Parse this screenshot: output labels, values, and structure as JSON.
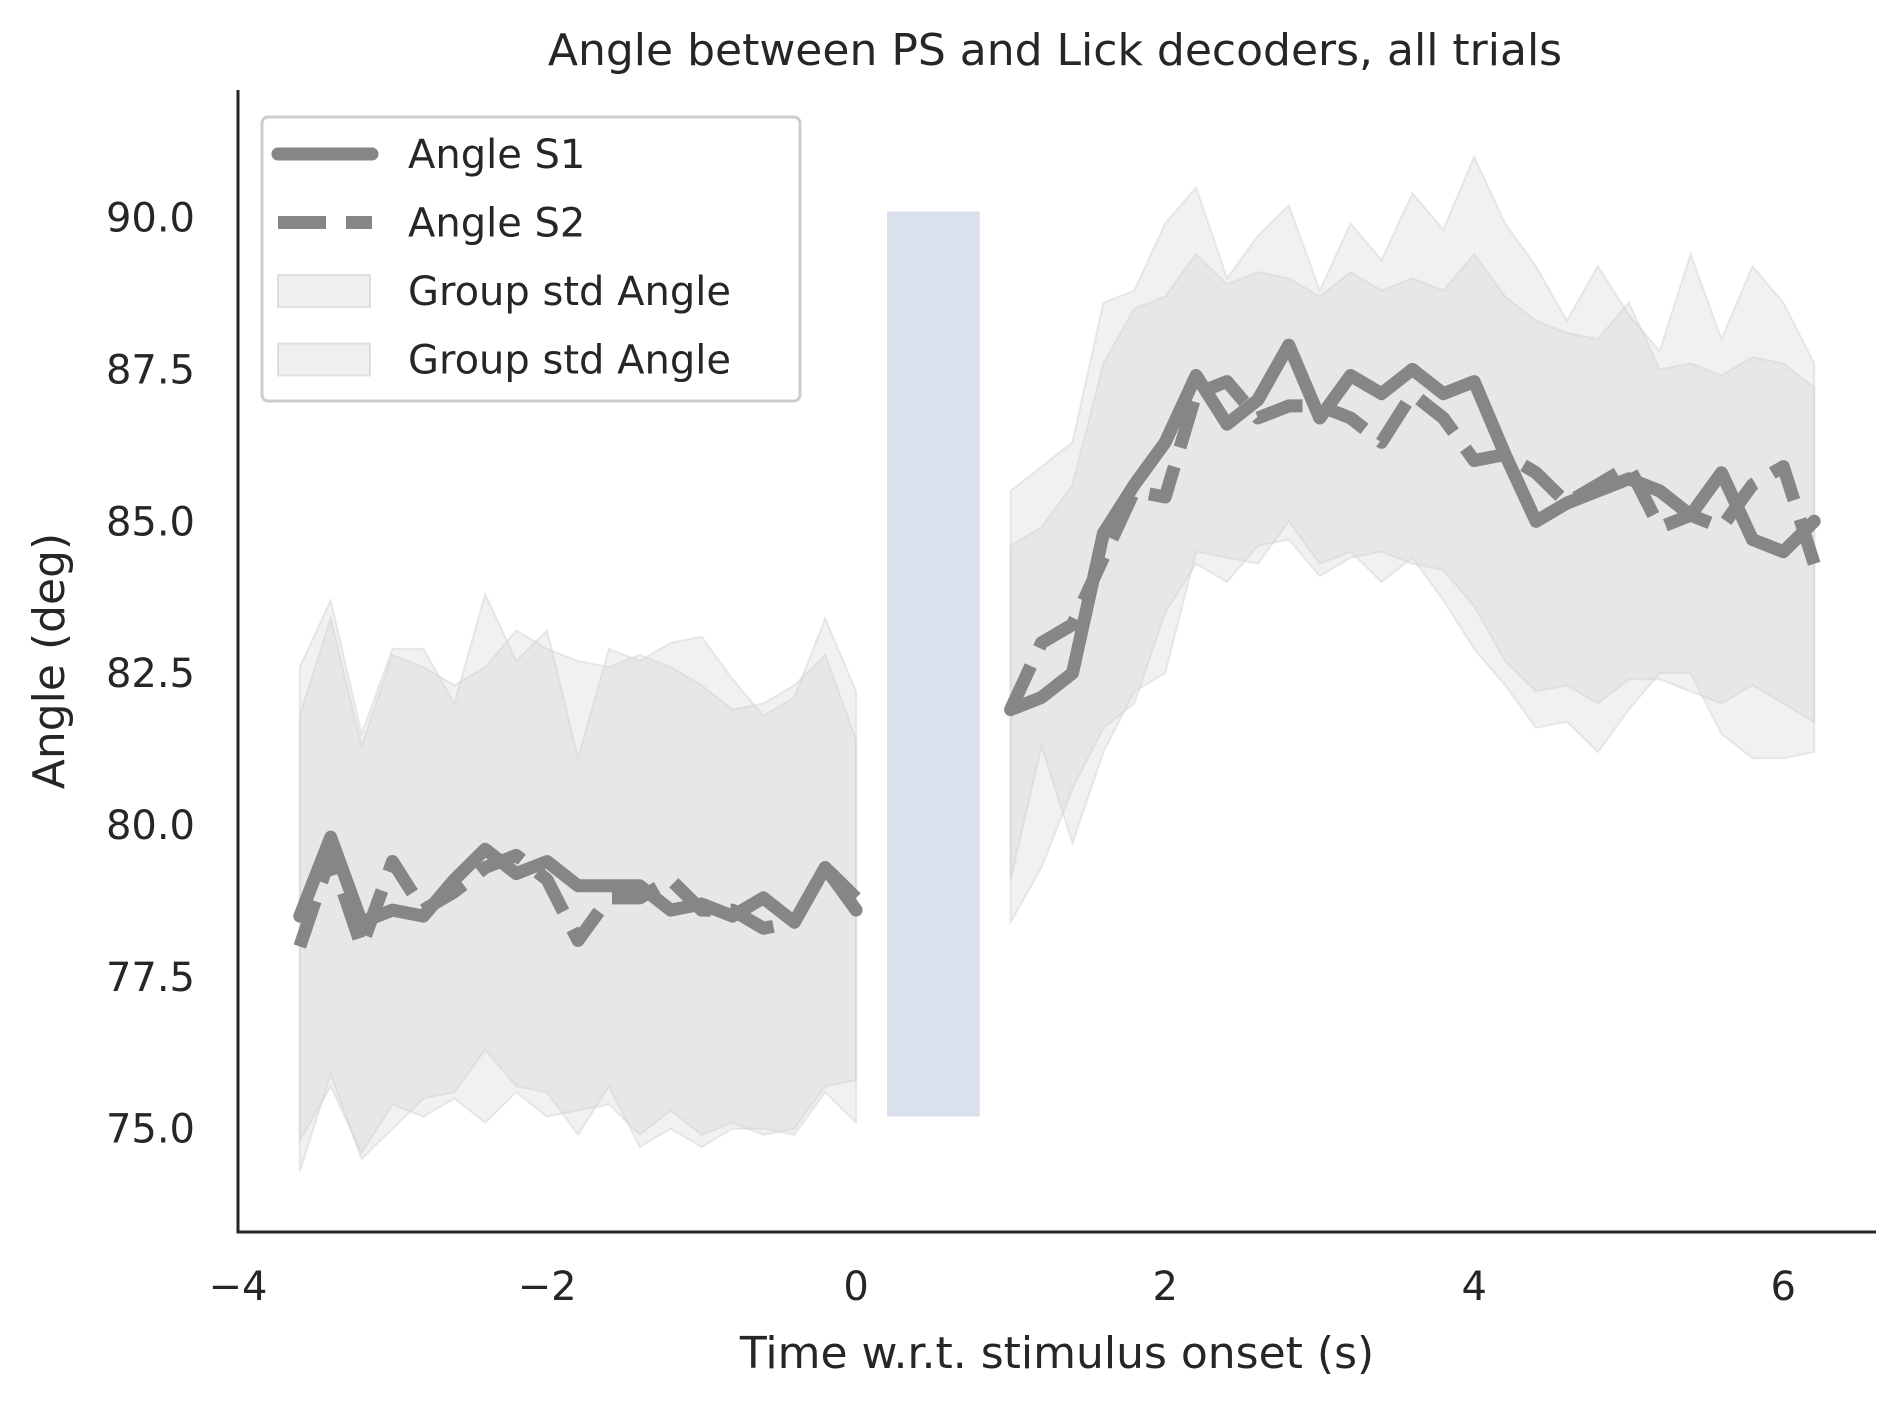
{
  "chart_data": {
    "type": "line",
    "title": "Angle between PS and Lick decoders, all trials",
    "xlabel": "Time w.r.t. stimulus onset (s)",
    "ylabel": "Angle (deg)",
    "xlim": [
      -4,
      6.6
    ],
    "ylim": [
      73.3,
      92.1
    ],
    "xticks": [
      -4,
      -2,
      0,
      2,
      4,
      6
    ],
    "xtick_labels": [
      "−4",
      "−2",
      "0",
      "2",
      "4",
      "6"
    ],
    "yticks": [
      75.0,
      77.5,
      80.0,
      82.5,
      85.0,
      87.5,
      90.0
    ],
    "ytick_labels": [
      "75.0",
      "77.5",
      "80.0",
      "82.5",
      "85.0",
      "87.5",
      "90.0"
    ],
    "grid": false,
    "legend_position": "top-left",
    "stim_window": {
      "x": [
        0.2,
        0.8
      ],
      "y": [
        75.2,
        90.1
      ],
      "color": "#dae0ec"
    },
    "series": [
      {
        "name": "Angle S1",
        "style": "solid",
        "color": "#868686",
        "segments": [
          {
            "x": [
              -3.6,
              -3.4,
              -3.2,
              -3.0,
              -2.8,
              -2.6,
              -2.4,
              -2.2,
              -2.0,
              -1.8,
              -1.6,
              -1.4,
              -1.2,
              -1.0,
              -0.8,
              -0.6,
              -0.4,
              -0.2,
              0.0
            ],
            "y": [
              78.5,
              79.8,
              78.4,
              78.6,
              78.5,
              79.1,
              79.6,
              79.2,
              79.4,
              79.0,
              79.0,
              79.0,
              78.6,
              78.7,
              78.5,
              78.8,
              78.4,
              79.3,
              78.6
            ]
          },
          {
            "x": [
              1.0,
              1.2,
              1.4,
              1.6,
              1.8,
              2.0,
              2.2,
              2.4,
              2.6,
              2.8,
              3.0,
              3.2,
              3.4,
              3.6,
              3.8,
              4.0,
              4.2,
              4.4,
              4.6,
              4.8,
              5.0,
              5.2,
              5.4,
              5.6,
              5.8,
              6.0,
              6.2
            ],
            "y": [
              81.9,
              82.1,
              82.5,
              84.8,
              85.6,
              86.3,
              87.4,
              86.6,
              87.0,
              87.9,
              86.7,
              87.4,
              87.1,
              87.5,
              87.1,
              87.3,
              86.1,
              85.0,
              85.3,
              85.5,
              85.7,
              85.5,
              85.1,
              85.8,
              84.7,
              84.5,
              85.0
            ]
          }
        ]
      },
      {
        "name": "Angle S2",
        "style": "dashed",
        "color": "#868686",
        "segments": [
          {
            "x": [
              -3.6,
              -3.4,
              -3.2,
              -3.0,
              -2.8,
              -2.6,
              -2.4,
              -2.2,
              -2.0,
              -1.8,
              -1.6,
              -1.4,
              -1.2,
              -1.0,
              -0.8,
              -0.6,
              -0.4,
              -0.2,
              0.0
            ],
            "y": [
              78.0,
              79.5,
              78.0,
              79.4,
              78.6,
              78.9,
              79.3,
              79.5,
              79.1,
              78.1,
              78.8,
              78.8,
              79.1,
              78.6,
              78.6,
              78.3,
              78.4,
              79.3,
              78.8
            ]
          },
          {
            "x": [
              1.0,
              1.2,
              1.4,
              1.6,
              1.8,
              2.0,
              2.2,
              2.4,
              2.6,
              2.8,
              3.0,
              3.2,
              3.4,
              3.6,
              3.8,
              4.0,
              4.2,
              4.4,
              4.6,
              4.8,
              5.0,
              5.2,
              5.4,
              5.6,
              5.8,
              6.0,
              6.2
            ],
            "y": [
              81.9,
              83.0,
              83.3,
              84.4,
              85.5,
              85.4,
              87.1,
              87.3,
              86.7,
              86.9,
              86.9,
              86.7,
              86.3,
              87.1,
              86.7,
              86.0,
              86.1,
              85.8,
              85.3,
              85.6,
              85.9,
              84.9,
              85.1,
              84.9,
              85.6,
              85.9,
              84.3
            ]
          }
        ]
      }
    ],
    "bands": [
      {
        "name": "Group std Angle",
        "color": "#d0d0d0",
        "segments": [
          {
            "x": [
              -3.6,
              -3.4,
              -3.2,
              -3.0,
              -2.8,
              -2.6,
              -2.4,
              -2.2,
              -2.0,
              -1.8,
              -1.6,
              -1.4,
              -1.2,
              -1.0,
              -0.8,
              -0.6,
              -0.4,
              -0.2,
              0.0
            ],
            "upper": [
              82.6,
              83.7,
              81.5,
              82.9,
              82.9,
              82.0,
              83.8,
              82.7,
              83.2,
              81.1,
              82.9,
              82.7,
              83.0,
              83.1,
              82.4,
              81.8,
              82.1,
              83.4,
              82.2
            ],
            "lower": [
              74.3,
              75.9,
              74.5,
              75.0,
              75.5,
              75.6,
              76.3,
              75.7,
              75.6,
              74.9,
              75.7,
              74.7,
              75.0,
              74.7,
              75.0,
              75.0,
              74.9,
              75.6,
              75.1
            ]
          },
          {
            "x": [
              1.0,
              1.2,
              1.4,
              1.6,
              1.8,
              2.0,
              2.2,
              2.4,
              2.6,
              2.8,
              3.0,
              3.2,
              3.4,
              3.6,
              3.8,
              4.0,
              4.2,
              4.4,
              4.6,
              4.8,
              5.0,
              5.2,
              5.4,
              5.6,
              5.8,
              6.0,
              6.2
            ],
            "upper": [
              85.5,
              85.9,
              86.3,
              88.6,
              88.8,
              89.9,
              90.5,
              89.0,
              89.7,
              90.2,
              88.8,
              89.9,
              89.3,
              90.4,
              89.8,
              91.0,
              89.9,
              89.2,
              88.3,
              89.2,
              88.4,
              87.8,
              89.4,
              88.0,
              89.2,
              88.6,
              87.6
            ],
            "lower": [
              79.1,
              81.3,
              79.7,
              81.2,
              82.2,
              82.5,
              84.5,
              84.4,
              84.3,
              85.0,
              84.3,
              84.5,
              84.0,
              84.4,
              83.7,
              82.9,
              82.3,
              81.6,
              81.7,
              81.2,
              81.9,
              82.5,
              82.5,
              81.5,
              81.1,
              81.1,
              81.2
            ]
          }
        ]
      },
      {
        "name": "Group std Angle",
        "color": "#d0d0d0",
        "segments": [
          {
            "x": [
              -3.6,
              -3.4,
              -3.2,
              -3.0,
              -2.8,
              -2.6,
              -2.4,
              -2.2,
              -2.0,
              -1.8,
              -1.6,
              -1.4,
              -1.2,
              -1.0,
              -0.8,
              -0.6,
              -0.4,
              -0.2,
              0.0
            ],
            "upper": [
              81.8,
              83.4,
              81.3,
              82.8,
              82.6,
              82.3,
              82.6,
              83.2,
              82.9,
              82.7,
              82.6,
              82.8,
              82.6,
              82.3,
              81.9,
              82.0,
              82.3,
              82.8,
              81.4
            ],
            "lower": [
              74.8,
              75.7,
              74.6,
              75.4,
              75.2,
              75.5,
              75.1,
              75.6,
              75.2,
              75.3,
              75.4,
              74.9,
              75.3,
              74.9,
              75.1,
              74.9,
              75.0,
              75.7,
              75.8
            ]
          },
          {
            "x": [
              1.0,
              1.2,
              1.4,
              1.6,
              1.8,
              2.0,
              2.2,
              2.4,
              2.6,
              2.8,
              3.0,
              3.2,
              3.4,
              3.6,
              3.8,
              4.0,
              4.2,
              4.4,
              4.6,
              4.8,
              5.0,
              5.2,
              5.4,
              5.6,
              5.8,
              6.0,
              6.2
            ],
            "upper": [
              84.6,
              84.9,
              85.6,
              87.6,
              88.5,
              88.7,
              89.4,
              88.9,
              89.1,
              89.0,
              88.7,
              89.1,
              88.8,
              89.0,
              88.8,
              89.4,
              88.7,
              88.3,
              88.1,
              88.0,
              88.6,
              87.5,
              87.6,
              87.4,
              87.7,
              87.6,
              87.2
            ],
            "lower": [
              78.4,
              79.3,
              80.6,
              81.6,
              82.0,
              83.5,
              84.3,
              84.0,
              84.6,
              84.7,
              84.1,
              84.4,
              84.5,
              84.3,
              84.2,
              83.6,
              82.7,
              82.2,
              82.3,
              82.0,
              82.4,
              82.4,
              82.2,
              82.0,
              82.3,
              82.0,
              81.7
            ]
          }
        ]
      }
    ],
    "legend_entries": [
      {
        "label": "Angle S1",
        "kind": "solid-line"
      },
      {
        "label": "Angle S2",
        "kind": "dashed-line"
      },
      {
        "label": "Group std Angle",
        "kind": "patch"
      },
      {
        "label": "Group std Angle",
        "kind": "patch"
      }
    ]
  }
}
